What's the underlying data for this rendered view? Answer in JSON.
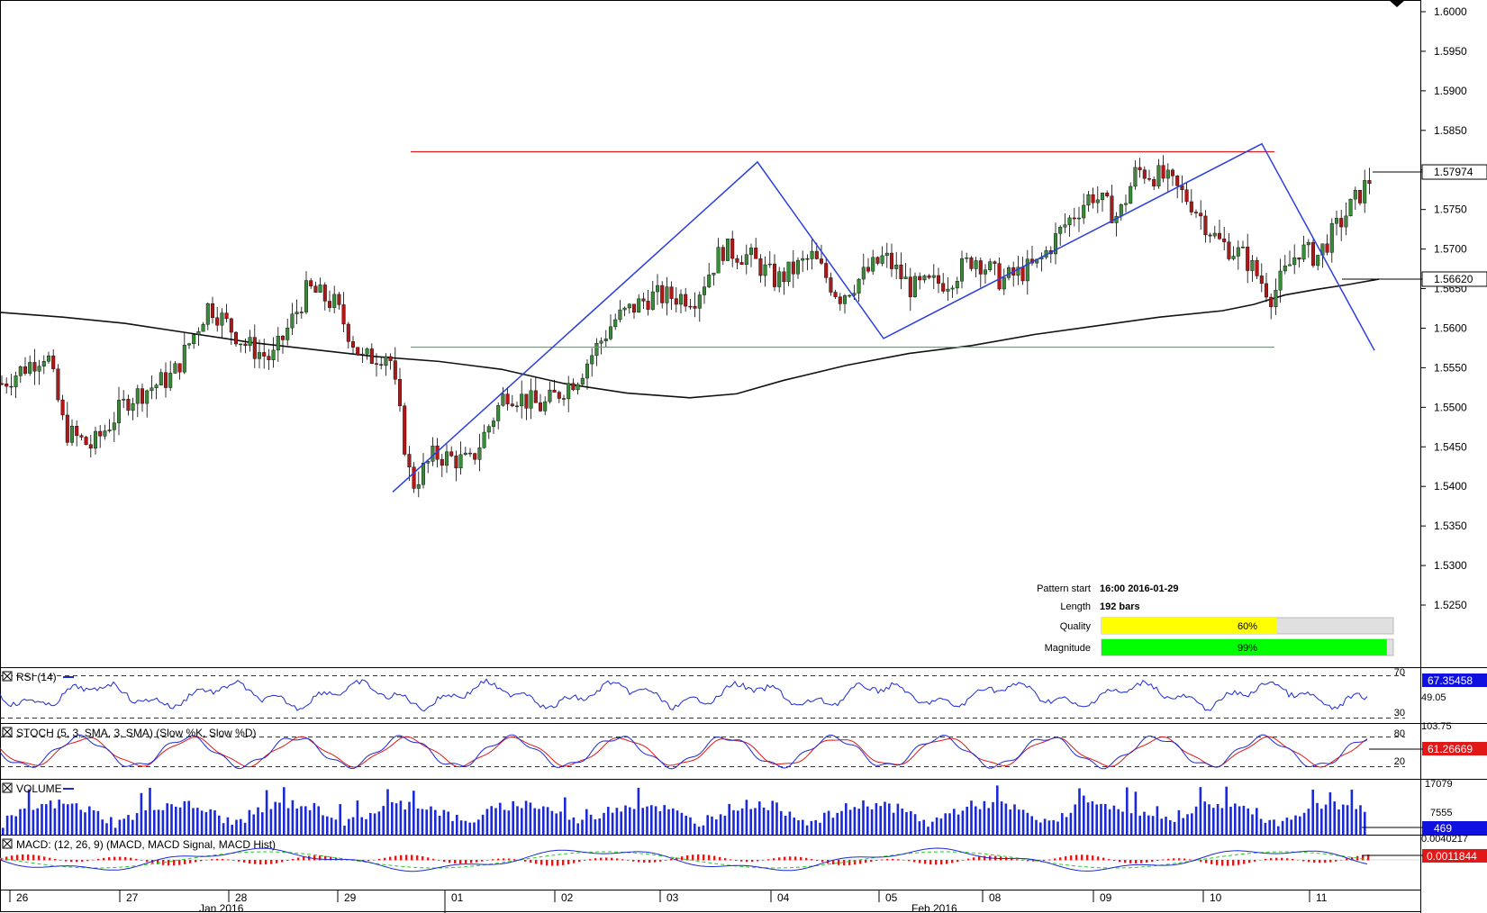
{
  "chart_data": {
    "type": "candlestick",
    "price_axis": {
      "ticks": [
        "1.6000",
        "1.5950",
        "1.5900",
        "1.5850",
        "1.5800",
        "1.5750",
        "1.5700",
        "1.5650",
        "1.5600",
        "1.5550",
        "1.5500",
        "1.5450",
        "1.5400",
        "1.5350",
        "1.5300",
        "1.5250"
      ],
      "range": [
        1.521,
        1.6008
      ]
    },
    "current_price_label": "1.57974",
    "current_price": 1.57974,
    "ma_label": "1.56620",
    "ma_value": 1.5662,
    "moving_average": [
      [
        0,
        1.562
      ],
      [
        40,
        1.5614
      ],
      [
        80,
        1.5606
      ],
      [
        120,
        1.5594
      ],
      [
        160,
        1.5582
      ],
      [
        200,
        1.5573
      ],
      [
        240,
        1.5564
      ],
      [
        280,
        1.5558
      ],
      [
        320,
        1.5548
      ],
      [
        360,
        1.553
      ],
      [
        400,
        1.5518
      ],
      [
        440,
        1.5512
      ],
      [
        470,
        1.5517
      ],
      [
        500,
        1.5534
      ],
      [
        540,
        1.5553
      ],
      [
        580,
        1.5568
      ],
      [
        620,
        1.5578
      ],
      [
        660,
        1.5592
      ],
      [
        700,
        1.5603
      ],
      [
        740,
        1.5614
      ],
      [
        780,
        1.5622
      ],
      [
        800,
        1.563
      ],
      [
        820,
        1.5642
      ],
      [
        840,
        1.5649
      ],
      [
        860,
        1.5655
      ],
      [
        880,
        1.5662
      ]
    ],
    "x_axis": {
      "day_labels": [
        "26",
        "27",
        "28",
        "29",
        "01",
        "02",
        "03",
        "04",
        "05",
        "08",
        "09",
        "10",
        "11"
      ],
      "month_labels": [
        "Jan 2016",
        "Feb 2016"
      ]
    },
    "pattern": {
      "resistance_level": 1.5823,
      "support_level": 1.5576,
      "zigzag": [
        [
          520,
          1.5393
        ],
        [
          925,
          1.581
        ],
        [
          1065,
          1.5587
        ],
        [
          1485,
          1.5833
        ],
        [
          1610,
          1.5572
        ]
      ],
      "info": {
        "pattern_start_label": "Pattern start",
        "pattern_start": "16:00 2016-01-29",
        "length_label": "Length",
        "length": "192 bars",
        "quality_label": "Quality",
        "quality": "60%",
        "quality_value": 0.6,
        "magnitude_label": "Magnitude",
        "magnitude": "99%",
        "magnitude_value": 0.99
      }
    },
    "indicators": {
      "rsi": {
        "title": "RSI (14)",
        "value_label": "67.35458",
        "levels": [
          "70",
          "49.05",
          "30"
        ]
      },
      "stoch": {
        "title": "STOCH (5, 3, SMA, 3, SMA) (Slow %K, Slow %D)",
        "value_label": "61.26669",
        "axis": [
          "103.75",
          "80",
          "20"
        ],
        "k_value": 61.26669
      },
      "volume": {
        "title": "VOLUME",
        "value_label": "469",
        "axis": [
          "17079",
          "7555"
        ]
      },
      "macd": {
        "title": "MACD: (12, 26, 9) (MACD, MACD Signal, MACD Hist)",
        "value_label": "0.0011844",
        "axis": [
          "0.0040217"
        ],
        "value": 0.0011844
      }
    },
    "colors": {
      "up": "#3a8a3a",
      "down": "#b01818",
      "ma": "#111111",
      "zigzag": "#2b3fe0",
      "resistance": "#e02020",
      "support": "#22cc22",
      "rsi_line": "#1a2ad8",
      "stoch_k": "#1a2ad8",
      "stoch_d": "#e01818",
      "volume": "#1a2ad8",
      "macd": "#1a2ad8",
      "macd_signal": "#22cc22",
      "macd_hist": "#e01818",
      "quality": "#ffff00",
      "magnitude": "#00ff00",
      "label_bg": "#1010e0"
    }
  }
}
